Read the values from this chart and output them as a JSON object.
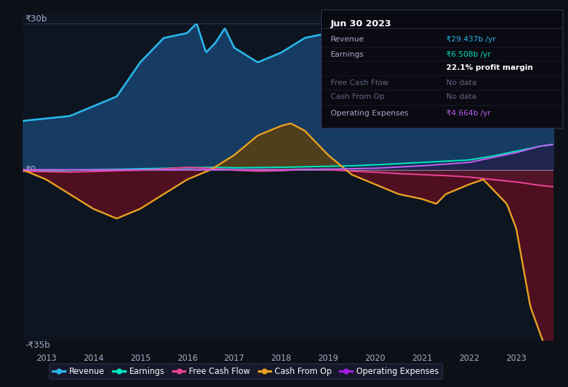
{
  "bg_color": "#0d1117",
  "plot_bg_color": "#0d1520",
  "y_label_top": "₹30b",
  "y_label_zero": "₹0",
  "y_label_bottom": "-₹35b",
  "x_ticks": [
    2013,
    2014,
    2015,
    2016,
    2017,
    2018,
    2019,
    2020,
    2021,
    2022,
    2023
  ],
  "ylim": [
    -35,
    32
  ],
  "xlim": [
    2012.5,
    2023.8
  ],
  "legend": [
    {
      "label": "Revenue",
      "color": "#29b5e8"
    },
    {
      "label": "Earnings",
      "color": "#00e5c0"
    },
    {
      "label": "Free Cash Flow",
      "color": "#e84393"
    },
    {
      "label": "Cash From Op",
      "color": "#e8a020"
    },
    {
      "label": "Operating Expenses",
      "color": "#a020e8"
    }
  ],
  "tooltip_date": "Jun 30 2023",
  "tooltip_rows": [
    {
      "label": "Revenue",
      "value": "₹29.437b /yr",
      "value_color": "#29b5e8",
      "dimmed": false
    },
    {
      "label": "Earnings",
      "value": "₹6.508b /yr",
      "value_color": "#00e5c0",
      "dimmed": false
    },
    {
      "label": "",
      "value": "22.1% profit margin",
      "value_color": "#ffffff",
      "dimmed": false,
      "bold": true
    },
    {
      "label": "Free Cash Flow",
      "value": "No data",
      "value_color": "#666688",
      "dimmed": true
    },
    {
      "label": "Cash From Op",
      "value": "No data",
      "value_color": "#666688",
      "dimmed": true
    },
    {
      "label": "Operating Expenses",
      "value": "₹4.664b /yr",
      "value_color": "#c060f0",
      "dimmed": false
    }
  ]
}
